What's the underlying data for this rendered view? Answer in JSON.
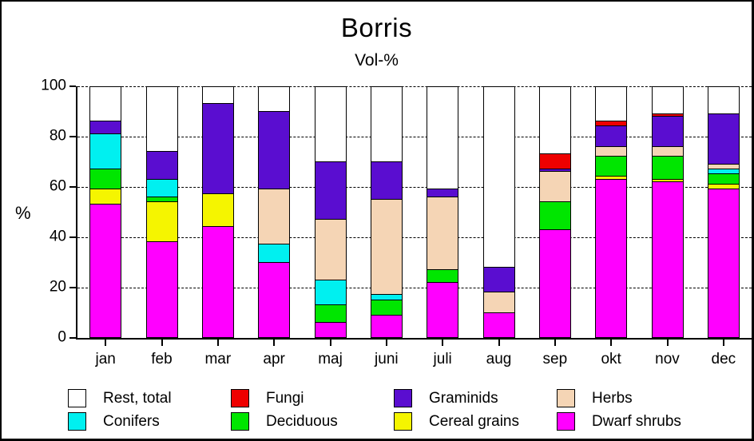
{
  "chart_data": {
    "type": "bar",
    "stacked": true,
    "title": "Borris",
    "subtitle": "Vol-%",
    "ylabel": "%",
    "ylim": [
      0,
      100
    ],
    "yticks": [
      0,
      20,
      40,
      60,
      80,
      100
    ],
    "grid": "dashed-horizontal",
    "legend_position": "bottom",
    "categories": [
      "jan",
      "feb",
      "mar",
      "apr",
      "maj",
      "juni",
      "juli",
      "aug",
      "sep",
      "okt",
      "nov",
      "dec"
    ],
    "series": [
      {
        "name": "Dwarf shrubs",
        "color": "#FF00FF",
        "values": [
          53,
          38,
          44,
          30,
          6,
          9,
          22,
          10,
          43,
          63,
          62,
          59
        ]
      },
      {
        "name": "Cereal grains",
        "color": "#F5F500",
        "values": [
          6,
          16,
          13,
          0,
          0,
          0,
          0,
          0,
          0,
          1,
          1,
          2
        ]
      },
      {
        "name": "Deciduous",
        "color": "#00E600",
        "values": [
          8,
          2,
          0,
          0,
          7,
          6,
          5,
          0,
          11,
          8,
          9,
          4
        ]
      },
      {
        "name": "Conifers",
        "color": "#00F0F0",
        "values": [
          14,
          7,
          0,
          7,
          10,
          2,
          0,
          0,
          0,
          0,
          0,
          2
        ]
      },
      {
        "name": "Herbs",
        "color": "#F5D5B5",
        "values": [
          0,
          0,
          0,
          22,
          24,
          38,
          29,
          8,
          12,
          4,
          4,
          2
        ]
      },
      {
        "name": "Graminids",
        "color": "#5A0DD0",
        "values": [
          5,
          11,
          36,
          31,
          23,
          15,
          3,
          10,
          1,
          8,
          12,
          20
        ]
      },
      {
        "name": "Fungi",
        "color": "#EE0000",
        "values": [
          0,
          0,
          0,
          0,
          0,
          0,
          0,
          0,
          6,
          2,
          1,
          0
        ]
      },
      {
        "name": "Rest, total",
        "color": "#FFFFFF",
        "values": [
          14,
          26,
          7,
          10,
          30,
          30,
          41,
          72,
          27,
          14,
          11,
          11
        ]
      }
    ],
    "legend": [
      {
        "label": "Rest, total",
        "color": "#FFFFFF"
      },
      {
        "label": "Fungi",
        "color": "#EE0000"
      },
      {
        "label": "Graminids",
        "color": "#5A0DD0"
      },
      {
        "label": "Herbs",
        "color": "#F5D5B5"
      },
      {
        "label": "Conifers",
        "color": "#00F0F0"
      },
      {
        "label": "Deciduous",
        "color": "#00E600"
      },
      {
        "label": "Cereal grains",
        "color": "#F5F500"
      },
      {
        "label": "Dwarf shrubs",
        "color": "#FF00FF"
      }
    ]
  }
}
